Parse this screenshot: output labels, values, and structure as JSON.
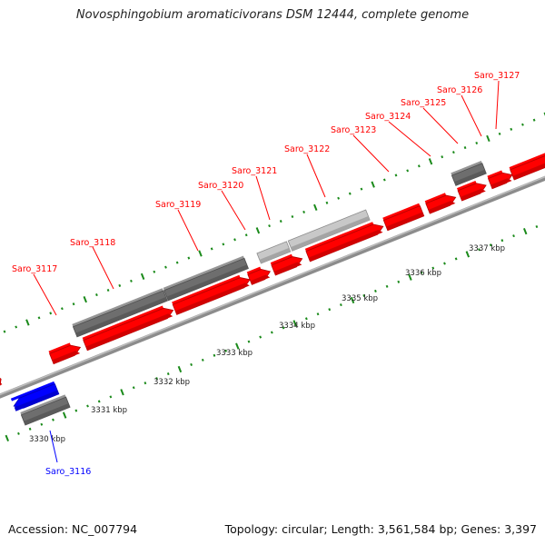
{
  "title": "Novosphingobium aromaticivorans DSM 12444, complete genome",
  "footer": {
    "accession": "Accession: NC_007794",
    "summary": "Topology: circular; Length: 3,561,584 bp; Genes: 3,397"
  },
  "colors": {
    "forward_gene": "#ff0000",
    "reverse_gene": "#0000ff",
    "other_feature_dark": "#6e6e6e",
    "other_feature_light": "#c8c8c8",
    "tick": "#1a8a1a",
    "backbone": "#8c8c8c"
  },
  "kbp_labels": [
    "3330 kbp",
    "3331 kbp",
    "3332 kbp",
    "3333 kbp",
    "3334 kbp",
    "3335 kbp",
    "3336 kbp",
    "3337 kbp"
  ],
  "genes": [
    {
      "label": "Saro_3116",
      "strand": "reverse",
      "color": "#0000ff"
    },
    {
      "label": "Saro_3117",
      "strand": "forward",
      "color": "#ff0000"
    },
    {
      "label": "Saro_3118",
      "strand": "forward",
      "color": "#ff0000"
    },
    {
      "label": "Saro_3119",
      "strand": "forward",
      "color": "#ff0000"
    },
    {
      "label": "Saro_3120",
      "strand": "forward",
      "color": "#ff0000"
    },
    {
      "label": "Saro_3121",
      "strand": "forward",
      "color": "#ff0000"
    },
    {
      "label": "Saro_3122",
      "strand": "forward",
      "color": "#ff0000"
    },
    {
      "label": "Saro_3123",
      "strand": "forward",
      "color": "#ff0000"
    },
    {
      "label": "Saro_3124",
      "strand": "forward",
      "color": "#ff0000"
    },
    {
      "label": "Saro_3125",
      "strand": "forward",
      "color": "#ff0000"
    },
    {
      "label": "Saro_3126",
      "strand": "forward",
      "color": "#ff0000"
    },
    {
      "label": "Saro_3127",
      "strand": "forward",
      "color": "#ff0000"
    }
  ]
}
